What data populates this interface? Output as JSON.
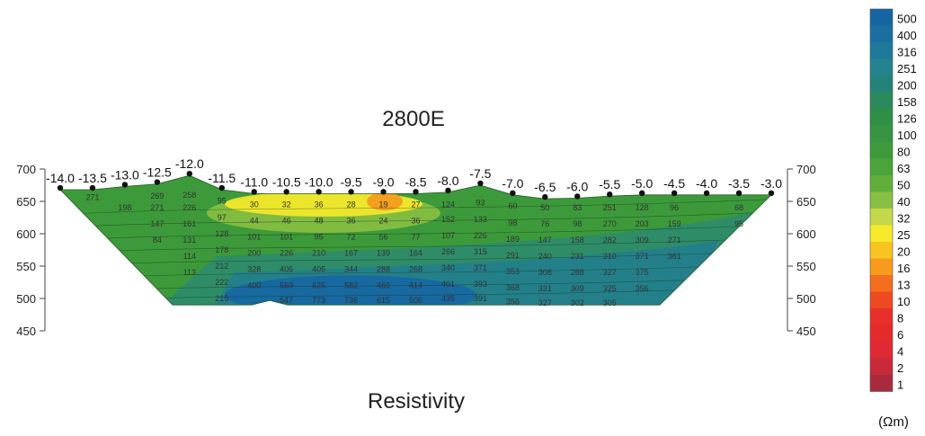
{
  "chart_data": {
    "type": "heatmap",
    "title": "2800E",
    "xlabel": "Resistivity",
    "ylabel": "",
    "ylim": [
      450,
      700
    ],
    "y_ticks": [
      "700",
      "650",
      "600",
      "550",
      "500",
      "450"
    ],
    "stations": [
      "-14.0",
      "-13.5",
      "-13.0",
      "-12.5",
      "-12.0",
      "-11.5",
      "-11.0",
      "-10.5",
      "-10.0",
      "-9.5",
      "-9.0",
      "-8.5",
      "-8.0",
      "-7.5",
      "-7.0",
      "-6.5",
      "-6.0",
      "-5.5",
      "-5.0",
      "-4.5",
      "-4.0",
      "-3.5",
      "-3.0"
    ],
    "surface_elevation": [
      668,
      668,
      673,
      677,
      690,
      668,
      662,
      662,
      662,
      662,
      662,
      662,
      664,
      675,
      660,
      654,
      655,
      658,
      660,
      660,
      660,
      660,
      660
    ],
    "bottom_elevation": [
      490,
      490,
      490,
      490,
      490,
      490,
      490,
      497,
      490,
      490,
      490,
      490,
      490,
      490,
      490,
      490,
      490,
      490,
      490,
      490,
      490,
      490,
      490
    ],
    "values": [
      {
        "x": -13.5,
        "y": 656,
        "v": "271"
      },
      {
        "x": -12.5,
        "y": 658,
        "v": "269"
      },
      {
        "x": -12.0,
        "y": 660,
        "v": "258"
      },
      {
        "x": -11.5,
        "y": 651,
        "v": "95"
      },
      {
        "x": -13.0,
        "y": 640,
        "v": "198"
      },
      {
        "x": -12.5,
        "y": 640,
        "v": "271"
      },
      {
        "x": -12.0,
        "y": 640,
        "v": "226"
      },
      {
        "x": -12.5,
        "y": 615,
        "v": "147"
      },
      {
        "x": -12.0,
        "y": 615,
        "v": "161"
      },
      {
        "x": -11.5,
        "y": 625,
        "v": "97"
      },
      {
        "x": -12.5,
        "y": 590,
        "v": "84"
      },
      {
        "x": -12.0,
        "y": 590,
        "v": "131"
      },
      {
        "x": -11.5,
        "y": 600,
        "v": "128"
      },
      {
        "x": -12.0,
        "y": 565,
        "v": "114"
      },
      {
        "x": -11.5,
        "y": 575,
        "v": "178"
      },
      {
        "x": -12.0,
        "y": 540,
        "v": "113"
      },
      {
        "x": -11.5,
        "y": 550,
        "v": "212"
      },
      {
        "x": -11.5,
        "y": 525,
        "v": "222"
      },
      {
        "x": -11.5,
        "y": 500,
        "v": "215"
      },
      {
        "x": -11.0,
        "y": 645,
        "v": "30"
      },
      {
        "x": -10.5,
        "y": 645,
        "v": "32"
      },
      {
        "x": -10.0,
        "y": 645,
        "v": "36"
      },
      {
        "x": -9.5,
        "y": 645,
        "v": "28"
      },
      {
        "x": -9.0,
        "y": 645,
        "v": "19"
      },
      {
        "x": -8.5,
        "y": 645,
        "v": "27"
      },
      {
        "x": -8.0,
        "y": 645,
        "v": "124"
      },
      {
        "x": -7.5,
        "y": 648,
        "v": "93"
      },
      {
        "x": -7.0,
        "y": 643,
        "v": "60"
      },
      {
        "x": -6.5,
        "y": 640,
        "v": "50"
      },
      {
        "x": -6.0,
        "y": 640,
        "v": "83"
      },
      {
        "x": -5.5,
        "y": 640,
        "v": "251"
      },
      {
        "x": -5.0,
        "y": 640,
        "v": "128"
      },
      {
        "x": -4.5,
        "y": 640,
        "v": "96"
      },
      {
        "x": -3.5,
        "y": 640,
        "v": "68"
      },
      {
        "x": -11.0,
        "y": 620,
        "v": "44"
      },
      {
        "x": -10.5,
        "y": 620,
        "v": "46"
      },
      {
        "x": -10.0,
        "y": 620,
        "v": "48"
      },
      {
        "x": -9.5,
        "y": 620,
        "v": "36"
      },
      {
        "x": -9.0,
        "y": 620,
        "v": "24"
      },
      {
        "x": -8.5,
        "y": 620,
        "v": "36"
      },
      {
        "x": -8.0,
        "y": 622,
        "v": "152"
      },
      {
        "x": -7.5,
        "y": 622,
        "v": "133"
      },
      {
        "x": -7.0,
        "y": 617,
        "v": "98"
      },
      {
        "x": -6.5,
        "y": 615,
        "v": "76"
      },
      {
        "x": -6.0,
        "y": 615,
        "v": "98"
      },
      {
        "x": -5.5,
        "y": 615,
        "v": "270"
      },
      {
        "x": -5.0,
        "y": 615,
        "v": "203"
      },
      {
        "x": -4.5,
        "y": 615,
        "v": "159"
      },
      {
        "x": -3.5,
        "y": 615,
        "v": "95"
      },
      {
        "x": -11.0,
        "y": 595,
        "v": "101"
      },
      {
        "x": -10.5,
        "y": 595,
        "v": "101"
      },
      {
        "x": -10.0,
        "y": 595,
        "v": "95"
      },
      {
        "x": -9.5,
        "y": 595,
        "v": "72"
      },
      {
        "x": -9.0,
        "y": 595,
        "v": "56"
      },
      {
        "x": -8.5,
        "y": 595,
        "v": "77"
      },
      {
        "x": -8.0,
        "y": 597,
        "v": "107"
      },
      {
        "x": -7.5,
        "y": 597,
        "v": "226"
      },
      {
        "x": -7.0,
        "y": 592,
        "v": "189"
      },
      {
        "x": -6.5,
        "y": 590,
        "v": "147"
      },
      {
        "x": -6.0,
        "y": 590,
        "v": "158"
      },
      {
        "x": -5.5,
        "y": 590,
        "v": "282"
      },
      {
        "x": -5.0,
        "y": 590,
        "v": "309"
      },
      {
        "x": -4.5,
        "y": 590,
        "v": "271"
      },
      {
        "x": -11.0,
        "y": 570,
        "v": "200"
      },
      {
        "x": -10.5,
        "y": 570,
        "v": "226"
      },
      {
        "x": -10.0,
        "y": 570,
        "v": "210"
      },
      {
        "x": -9.5,
        "y": 570,
        "v": "167"
      },
      {
        "x": -9.0,
        "y": 570,
        "v": "139"
      },
      {
        "x": -8.5,
        "y": 570,
        "v": "164"
      },
      {
        "x": -8.0,
        "y": 572,
        "v": "266"
      },
      {
        "x": -7.5,
        "y": 572,
        "v": "315"
      },
      {
        "x": -7.0,
        "y": 567,
        "v": "291"
      },
      {
        "x": -6.5,
        "y": 565,
        "v": "240"
      },
      {
        "x": -6.0,
        "y": 565,
        "v": "231"
      },
      {
        "x": -5.5,
        "y": 565,
        "v": "310"
      },
      {
        "x": -5.0,
        "y": 565,
        "v": "371"
      },
      {
        "x": -4.5,
        "y": 565,
        "v": "361"
      },
      {
        "x": -11.0,
        "y": 545,
        "v": "328"
      },
      {
        "x": -10.5,
        "y": 545,
        "v": "406"
      },
      {
        "x": -10.0,
        "y": 545,
        "v": "405"
      },
      {
        "x": -9.5,
        "y": 545,
        "v": "344"
      },
      {
        "x": -9.0,
        "y": 545,
        "v": "288"
      },
      {
        "x": -8.5,
        "y": 545,
        "v": "268"
      },
      {
        "x": -8.0,
        "y": 547,
        "v": "340"
      },
      {
        "x": -7.5,
        "y": 547,
        "v": "371"
      },
      {
        "x": -7.0,
        "y": 542,
        "v": "353"
      },
      {
        "x": -6.5,
        "y": 540,
        "v": "308"
      },
      {
        "x": -6.0,
        "y": 540,
        "v": "288"
      },
      {
        "x": -5.5,
        "y": 540,
        "v": "327"
      },
      {
        "x": -5.0,
        "y": 540,
        "v": "375"
      },
      {
        "x": -11.0,
        "y": 520,
        "v": "400"
      },
      {
        "x": -10.5,
        "y": 520,
        "v": "569"
      },
      {
        "x": -10.0,
        "y": 520,
        "v": "625"
      },
      {
        "x": -9.5,
        "y": 520,
        "v": "582"
      },
      {
        "x": -9.0,
        "y": 520,
        "v": "469"
      },
      {
        "x": -8.5,
        "y": 520,
        "v": "414"
      },
      {
        "x": -8.0,
        "y": 522,
        "v": "401"
      },
      {
        "x": -7.5,
        "y": 522,
        "v": "393"
      },
      {
        "x": -7.0,
        "y": 517,
        "v": "368"
      },
      {
        "x": -6.5,
        "y": 515,
        "v": "331"
      },
      {
        "x": -6.0,
        "y": 515,
        "v": "309"
      },
      {
        "x": -5.5,
        "y": 515,
        "v": "325"
      },
      {
        "x": -5.0,
        "y": 515,
        "v": "356"
      },
      {
        "x": -11.0,
        "y": 497,
        "v": "..."
      },
      {
        "x": -10.5,
        "y": 497,
        "v": "547"
      },
      {
        "x": -10.0,
        "y": 497,
        "v": "773"
      },
      {
        "x": -9.5,
        "y": 497,
        "v": "736"
      },
      {
        "x": -9.0,
        "y": 497,
        "v": "615"
      },
      {
        "x": -8.5,
        "y": 497,
        "v": "506"
      },
      {
        "x": -8.0,
        "y": 500,
        "v": "435"
      },
      {
        "x": -7.5,
        "y": 500,
        "v": "391"
      },
      {
        "x": -7.0,
        "y": 495,
        "v": "356"
      },
      {
        "x": -6.5,
        "y": 493,
        "v": "327"
      },
      {
        "x": -6.0,
        "y": 493,
        "v": "302"
      },
      {
        "x": -5.5,
        "y": 493,
        "v": "305"
      }
    ],
    "legend": {
      "title": "(Ωm)",
      "placement": "right",
      "entries": [
        {
          "label": "500",
          "color": "#1565a5"
        },
        {
          "label": "400",
          "color": "#1a6fa0"
        },
        {
          "label": "316",
          "color": "#1f7a99"
        },
        {
          "label": "251",
          "color": "#23838e"
        },
        {
          "label": "200",
          "color": "#23837a"
        },
        {
          "label": "158",
          "color": "#2a8a5a"
        },
        {
          "label": "126",
          "color": "#2f8f47"
        },
        {
          "label": "100",
          "color": "#379440"
        },
        {
          "label": "80",
          "color": "#3c9a3a"
        },
        {
          "label": "63",
          "color": "#4aa43a"
        },
        {
          "label": "50",
          "color": "#62ae3a"
        },
        {
          "label": "40",
          "color": "#88c043"
        },
        {
          "label": "32",
          "color": "#c5d84a"
        },
        {
          "label": "25",
          "color": "#f6ea2a"
        },
        {
          "label": "20",
          "color": "#f8c420"
        },
        {
          "label": "16",
          "color": "#f79a1d"
        },
        {
          "label": "13",
          "color": "#f36e1e"
        },
        {
          "label": "10",
          "color": "#ed4a22"
        },
        {
          "label": "8",
          "color": "#e8302a"
        },
        {
          "label": "6",
          "color": "#e52a2c"
        },
        {
          "label": "4",
          "color": "#e02a33"
        },
        {
          "label": "2",
          "color": "#c82a3a"
        },
        {
          "label": "1",
          "color": "#a82a3c"
        }
      ]
    }
  }
}
